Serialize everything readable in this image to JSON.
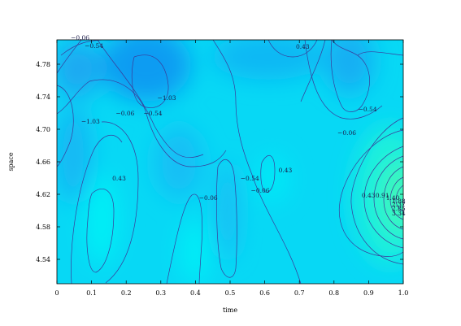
{
  "chart_data": {
    "type": "heatmap",
    "xlabel": "time",
    "ylabel": "space",
    "xlim": [
      0.0,
      1.0
    ],
    "ylim": [
      4.51,
      4.81
    ],
    "x_ticks": [
      "0",
      "0.1",
      "0.2",
      "0.3",
      "0.4",
      "0.5",
      "0.6",
      "0.7",
      "0.8",
      "0.9",
      "1.0"
    ],
    "y_ticks": [
      "4.54",
      "4.58",
      "4.62",
      "4.66",
      "4.70",
      "4.74",
      "4.78"
    ],
    "colormap": {
      "low": "#0a9cf2",
      "mid": "#00e6f7",
      "high": "#39f5bd"
    },
    "contour_levels": [
      -1.03,
      -0.54,
      -0.06,
      0.43,
      0.91,
      1.4
    ],
    "contour_labels": [
      {
        "text": "-0.06",
        "x": 0.04,
        "y": 4.81
      },
      {
        "text": "-0.54",
        "x": 0.08,
        "y": 4.8
      },
      {
        "text": "-1.03",
        "x": 0.29,
        "y": 4.736
      },
      {
        "text": "-1.03",
        "x": 0.07,
        "y": 4.707
      },
      {
        "text": "-0.06",
        "x": 0.17,
        "y": 4.717
      },
      {
        "text": "-0.54",
        "x": 0.25,
        "y": 4.717
      },
      {
        "text": "0.43",
        "x": 0.16,
        "y": 4.637
      },
      {
        "text": "-0.06",
        "x": 0.41,
        "y": 4.613
      },
      {
        "text": "-0.54",
        "x": 0.53,
        "y": 4.637
      },
      {
        "text": "-0.06",
        "x": 0.56,
        "y": 4.622
      },
      {
        "text": "0.43",
        "x": 0.64,
        "y": 4.647
      },
      {
        "text": "0.43",
        "x": 0.69,
        "y": 4.799
      },
      {
        "text": "-0.54",
        "x": 0.87,
        "y": 4.722
      },
      {
        "text": "-0.06",
        "x": 0.81,
        "y": 4.693
      },
      {
        "text": "0.43",
        "x": 0.88,
        "y": 4.616
      },
      {
        "text": "0.91",
        "x": 0.92,
        "y": 4.616
      },
      {
        "text": "1.40",
        "x": 0.95,
        "y": 4.613
      },
      {
        "text": "1.88",
        "x": 0.97,
        "y": 4.609
      },
      {
        "text": "2.37",
        "x": 0.985,
        "y": 4.605
      },
      {
        "text": "2.85",
        "x": 0.993,
        "y": 4.6
      },
      {
        "text": "3.34",
        "x": 0.998,
        "y": 4.594
      }
    ]
  }
}
